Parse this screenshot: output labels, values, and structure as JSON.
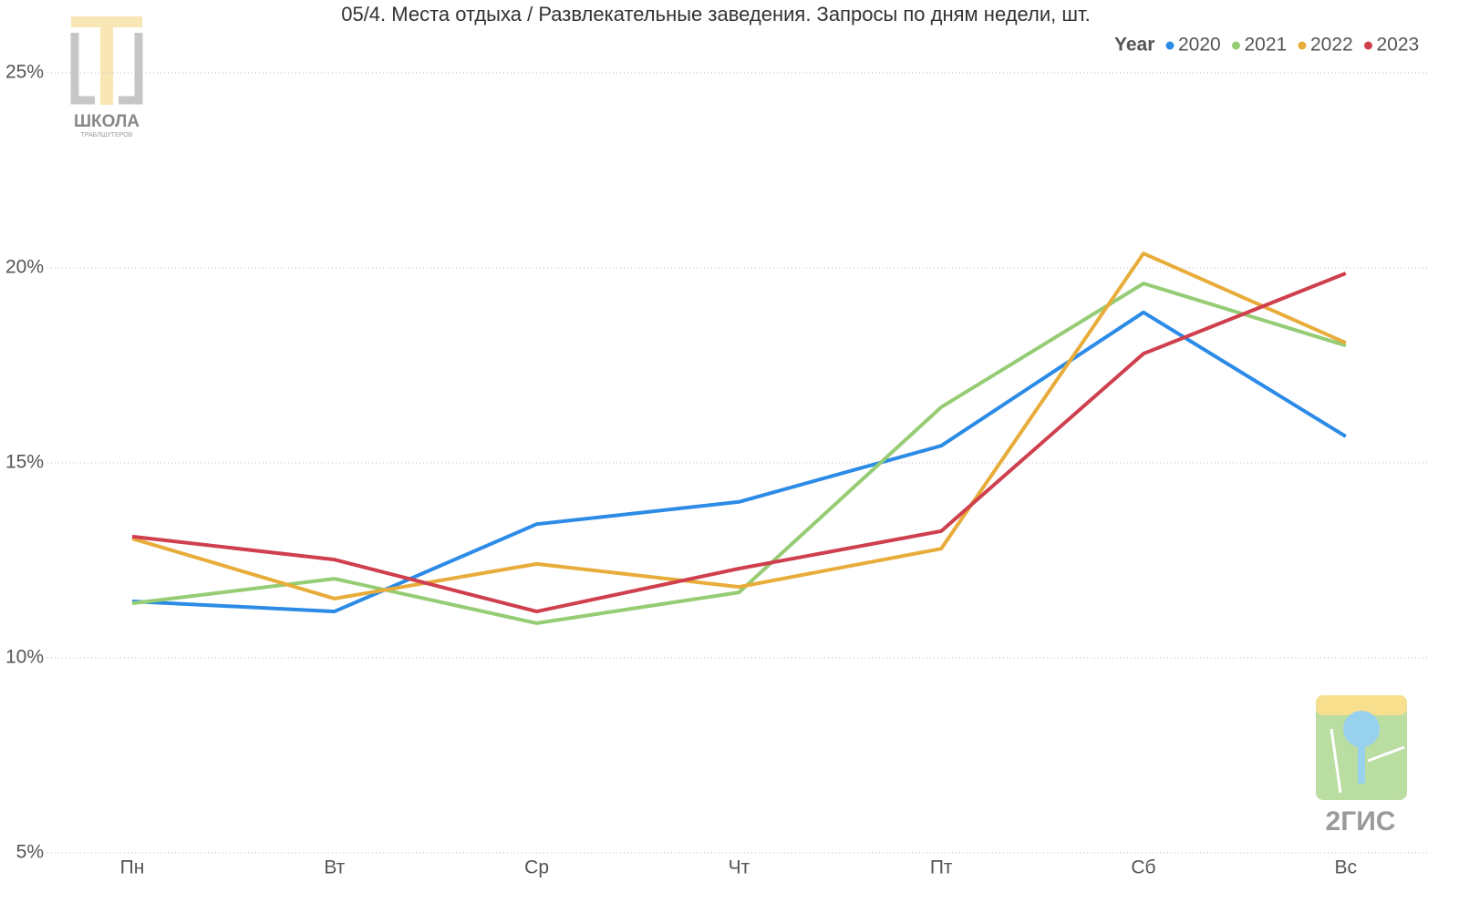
{
  "chart_data": {
    "type": "line",
    "title": "05/4. Места отдыха / Развлекательные заведения. Запросы по дням недели, шт.",
    "legend_title": "Year",
    "legend_position": "top-right",
    "categories": [
      "Пн",
      "Вт",
      "Ср",
      "Чт",
      "Пт",
      "Сб",
      "Вс"
    ],
    "series": [
      {
        "name": "2020",
        "color": "#2b8be6",
        "values": [
          11.45,
          11.19,
          13.43,
          14.0,
          15.44,
          18.86,
          15.68
        ]
      },
      {
        "name": "2021",
        "color": "#95cc74",
        "values": [
          11.4,
          12.03,
          10.89,
          11.68,
          16.43,
          19.6,
          18.01
        ]
      },
      {
        "name": "2022",
        "color": "#e8ac3a",
        "values": [
          13.06,
          11.52,
          12.41,
          11.82,
          12.8,
          20.37,
          18.08
        ]
      },
      {
        "name": "2023",
        "color": "#cf3f4d",
        "values": [
          13.11,
          12.52,
          11.19,
          12.29,
          13.25,
          17.8,
          19.86
        ]
      }
    ],
    "ylim": [
      5,
      25
    ],
    "yticks": [
      {
        "value": 5,
        "label": "5%"
      },
      {
        "value": 10,
        "label": "10%"
      },
      {
        "value": 15,
        "label": "15%"
      },
      {
        "value": 20,
        "label": "20%"
      },
      {
        "value": 25,
        "label": "25%"
      }
    ],
    "grid": true,
    "annotations": [
      "ШКОЛА",
      "ТРАБЛШУТЕРОВ",
      "2ГИС"
    ]
  }
}
